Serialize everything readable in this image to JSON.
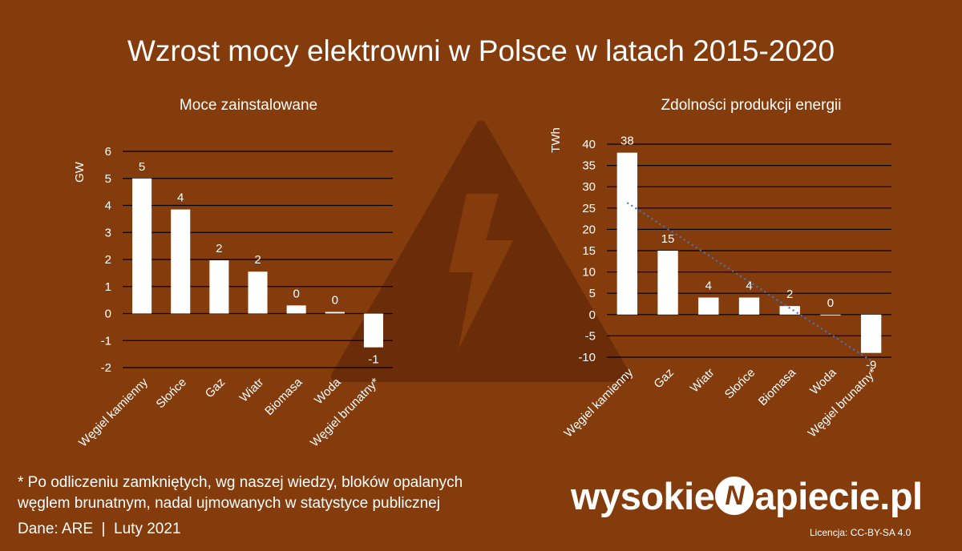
{
  "title": "Wzrost mocy elektrowni w Polsce w latach 2015-2020",
  "colors": {
    "background": "#843c0c",
    "bars": "#ffffff",
    "warning_triangle": "#6a2c09",
    "trendline": "#4a72c4"
  },
  "background_icon": "warning-triangle-lightning-icon",
  "chart_data": [
    {
      "type": "bar",
      "title": "Moce zainstalowane",
      "ylabel": "GW",
      "ylim": [
        -2,
        6
      ],
      "yticks": [
        -2,
        -1,
        0,
        1,
        2,
        3,
        4,
        5,
        6
      ],
      "grid": true,
      "categories": [
        "Węgiel kamienny",
        "Słońce",
        "Gaz",
        "Wiatr",
        "Biomasa",
        "Woda",
        "Węgiel brunatny*"
      ],
      "values": [
        5.0,
        3.85,
        1.97,
        1.55,
        0.3,
        0.06,
        -1.25
      ],
      "data_labels": [
        "5",
        "4",
        "2",
        "2",
        "0",
        "0",
        "-1"
      ]
    },
    {
      "type": "bar",
      "title": "Zdolności produkcji energii",
      "ylabel": "TWh",
      "ylim": [
        -10,
        40
      ],
      "yticks": [
        -10,
        -5,
        0,
        5,
        10,
        15,
        20,
        25,
        30,
        35,
        40
      ],
      "grid": true,
      "categories": [
        "Węgiel kamienny",
        "Gaz",
        "Wiatr",
        "Słońce",
        "Biomasa",
        "Woda",
        "Węgiel brunatny*"
      ],
      "values": [
        38,
        15,
        4,
        4,
        2,
        0,
        -9
      ],
      "data_labels": [
        "38",
        "15",
        "4",
        "4",
        "2",
        "0",
        "-9"
      ],
      "trendline": "linear"
    }
  ],
  "footnote": {
    "line1": "* Po odliczeniu zamkniętych, wg naszej wiedzy, bloków opalanych",
    "line2": "węglem brunatnym, nadal ujmowanych w statystyce publicznej"
  },
  "source": "Dane: ARE  |  Luty 2021",
  "brand": {
    "prefix": "wysokie",
    "letter": "N",
    "suffix": "apiecie.pl"
  },
  "license": "Licencja: CC-BY-SA 4.0"
}
